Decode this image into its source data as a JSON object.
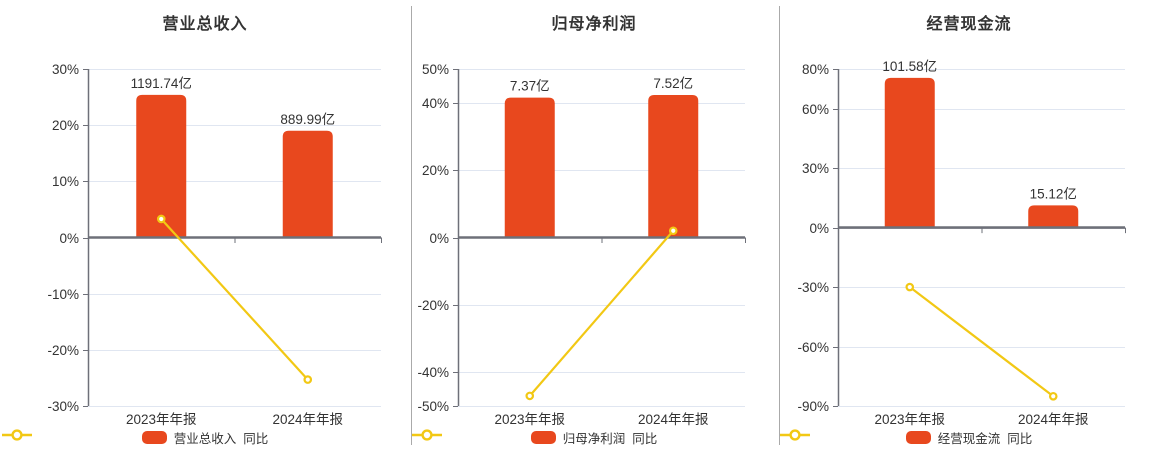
{
  "styles": {
    "bar_color": "#E8481E",
    "line_color": "#F2C814",
    "grid_color": "#E0E6F1",
    "axis_color": "#6E7079",
    "text_color": "#333333",
    "divider_color": "#AAAAAA",
    "background": "#FFFFFF"
  },
  "chart_data": {
    "type": "bar",
    "description": "Three side-by-side combo charts: orange bars (absolute value in 亿) on a hidden scale plus yellow YoY (同比) line plotted on the percent axis.",
    "panels": [
      {
        "title": "营业总收入",
        "categories": [
          "2023年年报",
          "2024年年报"
        ],
        "bar_series": {
          "name": "营业总收入",
          "values_yi": [
            1191.74,
            889.99
          ],
          "labels": [
            "1191.74亿",
            "889.99亿"
          ],
          "plotted_pct": [
            25.4,
            19.0
          ]
        },
        "line_series": {
          "name": "同比",
          "values_pct": [
            3.3,
            -25.3
          ]
        },
        "y_axis": {
          "min": -30,
          "max": 30,
          "ticks": [
            30,
            20,
            10,
            0,
            -10,
            -20,
            -30
          ],
          "tick_suffix": "%"
        }
      },
      {
        "title": "归母净利润",
        "categories": [
          "2023年年报",
          "2024年年报"
        ],
        "bar_series": {
          "name": "归母净利润",
          "values_yi": [
            7.37,
            7.52
          ],
          "labels": [
            "7.37亿",
            "7.52亿"
          ],
          "plotted_pct": [
            41.5,
            42.3
          ]
        },
        "line_series": {
          "name": "同比",
          "values_pct": [
            -47.0,
            2.0
          ]
        },
        "y_axis": {
          "min": -50,
          "max": 50,
          "ticks": [
            50,
            40,
            20,
            0,
            -20,
            -40,
            -50
          ],
          "tick_suffix": "%"
        }
      },
      {
        "title": "经营现金流",
        "categories": [
          "2023年年报",
          "2024年年报"
        ],
        "bar_series": {
          "name": "经营现金流",
          "values_yi": [
            101.58,
            15.12
          ],
          "labels": [
            "101.58亿",
            "15.12亿"
          ],
          "plotted_pct": [
            75.5,
            11.2
          ]
        },
        "line_series": {
          "name": "同比",
          "values_pct": [
            -30.0,
            -85.1
          ]
        },
        "y_axis": {
          "min": -90,
          "max": 80,
          "ticks": [
            80,
            60,
            30,
            0,
            -30,
            -60,
            -90
          ],
          "tick_suffix": "%"
        }
      }
    ]
  }
}
